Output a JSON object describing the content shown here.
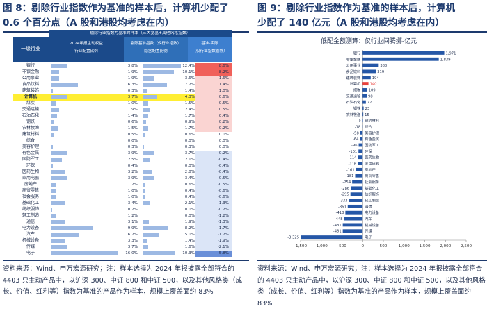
{
  "left": {
    "title_line1": "图 8：剔除行业指数作为基准的样本后，计算机少配了",
    "title_line2": "0.6 个百分点（A 股和港股均考虑在内）",
    "table_caption": "剔除行业指数为基准的样本（三大宽基+其他风格指数）",
    "headers": {
      "industry": "一级行业",
      "portfolio_a": "2024年报主动权益",
      "portfolio_b": "行业配置比例",
      "benchmark_a": "剔除基准指数（仅行业指数）",
      "benchmark_b": "隐含配置比例",
      "benchmark_c": "",
      "diff_a": "基准-实际",
      "diff_b": "（仅行业指数剔除）"
    },
    "highlight_row": "计算机",
    "source": "资料来源：Wind、申万宏源研究；注：样本选择为 2024 年报披露全部符合的 4403 只主动产品中，以沪深 300、中证 800 和中证 500，以及其他风格类（成长、价值、红利等）指数为基准的产品作为样本，规模上覆盖面约 83%",
    "rows": [
      {
        "name": "银行",
        "actual": "3.8%",
        "actual_v": 3.8,
        "bench": "12.4%",
        "bench_v": 12.4,
        "diff": "8.6%",
        "diff_v": 8.6
      },
      {
        "name": "非银金融",
        "actual": "1.9%",
        "actual_v": 1.9,
        "bench": "10.1%",
        "bench_v": 10.1,
        "diff": "8.2%",
        "diff_v": 8.2
      },
      {
        "name": "公用事业",
        "actual": "1.9%",
        "actual_v": 1.9,
        "bench": "3.6%",
        "bench_v": 3.6,
        "diff": "1.6%",
        "diff_v": 1.6
      },
      {
        "name": "食品饮料",
        "actual": "6.3%",
        "actual_v": 6.3,
        "bench": "7.7%",
        "bench_v": 7.7,
        "diff": "1.4%",
        "diff_v": 1.4
      },
      {
        "name": "建筑装饰",
        "actual": "0.3%",
        "actual_v": 0.3,
        "bench": "1.4%",
        "bench_v": 1.4,
        "diff": "1.0%",
        "diff_v": 1.0
      },
      {
        "name": "计算机",
        "actual": "3.7%",
        "actual_v": 3.7,
        "bench": "4.3%",
        "bench_v": 4.3,
        "diff": "0.6%",
        "diff_v": 0.6
      },
      {
        "name": "煤炭",
        "actual": "1.0%",
        "actual_v": 1.0,
        "bench": "1.5%",
        "bench_v": 1.5,
        "diff": "0.5%",
        "diff_v": 0.5
      },
      {
        "name": "交通运输",
        "actual": "1.9%",
        "actual_v": 1.9,
        "bench": "2.4%",
        "bench_v": 2.4,
        "diff": "0.5%",
        "diff_v": 0.5
      },
      {
        "name": "石油石化",
        "actual": "1.4%",
        "actual_v": 1.4,
        "bench": "1.7%",
        "bench_v": 1.7,
        "diff": "0.4%",
        "diff_v": 0.4
      },
      {
        "name": "钢铁",
        "actual": "0.6%",
        "actual_v": 0.6,
        "bench": "0.9%",
        "bench_v": 0.9,
        "diff": "0.2%",
        "diff_v": 0.2
      },
      {
        "name": "农林牧渔",
        "actual": "1.5%",
        "actual_v": 1.5,
        "bench": "1.7%",
        "bench_v": 1.7,
        "diff": "0.2%",
        "diff_v": 0.2
      },
      {
        "name": "建筑材料",
        "actual": "0.5%",
        "actual_v": 0.5,
        "bench": "0.6%",
        "bench_v": 0.6,
        "diff": "0.0%",
        "diff_v": 0.0
      },
      {
        "name": "综合",
        "actual": "0.0%",
        "actual_v": 0.0,
        "bench": "0.0%",
        "bench_v": 0.0,
        "diff": "0.0%",
        "diff_v": 0.0
      },
      {
        "name": "美容护理",
        "actual": "0.3%",
        "actual_v": 0.3,
        "bench": "0.3%",
        "bench_v": 0.3,
        "diff": "0.0%",
        "diff_v": 0.0
      },
      {
        "name": "有色金属",
        "actual": "3.9%",
        "actual_v": 3.9,
        "bench": "3.7%",
        "bench_v": 3.7,
        "diff": "-0.2%",
        "diff_v": -0.2
      },
      {
        "name": "国防军工",
        "actual": "2.5%",
        "actual_v": 2.5,
        "bench": "2.1%",
        "bench_v": 2.1,
        "diff": "-0.4%",
        "diff_v": -0.4
      },
      {
        "name": "环保",
        "actual": "0.4%",
        "actual_v": 0.4,
        "bench": "0.0%",
        "bench_v": 0.0,
        "diff": "-0.4%",
        "diff_v": -0.4
      },
      {
        "name": "医药生物",
        "actual": "3.2%",
        "actual_v": 3.2,
        "bench": "2.8%",
        "bench_v": 2.8,
        "diff": "-0.4%",
        "diff_v": -0.4
      },
      {
        "name": "家用电器",
        "actual": "3.9%",
        "actual_v": 3.9,
        "bench": "3.4%",
        "bench_v": 3.4,
        "diff": "-0.5%",
        "diff_v": -0.5
      },
      {
        "name": "房地产",
        "actual": "1.2%",
        "actual_v": 1.2,
        "bench": "0.6%",
        "bench_v": 0.6,
        "diff": "-0.5%",
        "diff_v": -0.5
      },
      {
        "name": "商贸零售",
        "actual": "1.0%",
        "actual_v": 1.0,
        "bench": "0.4%",
        "bench_v": 0.4,
        "diff": "-0.6%",
        "diff_v": -0.6
      },
      {
        "name": "社会服务",
        "actual": "1.0%",
        "actual_v": 1.0,
        "bench": "0.4%",
        "bench_v": 0.4,
        "diff": "-0.6%",
        "diff_v": -0.6
      },
      {
        "name": "基础化工",
        "actual": "3.4%",
        "actual_v": 3.4,
        "bench": "2.1%",
        "bench_v": 2.1,
        "diff": "-1.3%",
        "diff_v": -1.3
      },
      {
        "name": "纺织服饰",
        "actual": "0.2%",
        "actual_v": 0.2,
        "bench": "0.0%",
        "bench_v": 0.0,
        "diff": "-0.2%",
        "diff_v": -0.2
      },
      {
        "name": "轻工制造",
        "actual": "1.2%",
        "actual_v": 1.2,
        "bench": "0.0%",
        "bench_v": 0.0,
        "diff": "-1.2%",
        "diff_v": -1.2
      },
      {
        "name": "通信",
        "actual": "3.1%",
        "actual_v": 3.1,
        "bench": "1.9%",
        "bench_v": 1.9,
        "diff": "-1.3%",
        "diff_v": -1.3
      },
      {
        "name": "电力设备",
        "actual": "9.9%",
        "actual_v": 9.9,
        "bench": "8.2%",
        "bench_v": 8.2,
        "diff": "-1.7%",
        "diff_v": -1.7
      },
      {
        "name": "汽车",
        "actual": "6.7%",
        "actual_v": 6.7,
        "bench": "5.0%",
        "bench_v": 5.0,
        "diff": "-1.7%",
        "diff_v": -1.7
      },
      {
        "name": "机械设备",
        "actual": "3.3%",
        "actual_v": 3.3,
        "bench": "1.4%",
        "bench_v": 1.4,
        "diff": "-1.9%",
        "diff_v": -1.9
      },
      {
        "name": "传媒",
        "actual": "3.7%",
        "actual_v": 3.7,
        "bench": "1.6%",
        "bench_v": 1.6,
        "diff": "-2.1%",
        "diff_v": -2.1
      },
      {
        "name": "电子",
        "actual": "16.0%",
        "actual_v": 16.0,
        "bench": "10.3%",
        "bench_v": 10.3,
        "diff": "-5.8%",
        "diff_v": -5.8
      }
    ]
  },
  "right": {
    "title_line1": "图 9：剔除行业指数作为基准的样本后，计算机",
    "title_line2": "少配了 140 亿元（A 股和港股均考虑在内）",
    "source": "资料来源：Wind、申万宏源研究；注：样本选择为 2024 年报披露全部符合的 4403 只主动产品中，以沪深 300、中证 800 和中证 500，以及其他风格类（成长、价值、红利等）指数为基准的产品作为样本，规模上覆盖面约 83%"
  },
  "colors": {
    "navy": "#1d3a6e",
    "bar_blue": "#2557a7",
    "highlight_red": "#e8413c",
    "yellow": "#ffee33"
  },
  "chart_data": {
    "type": "bar",
    "orientation": "horizontal",
    "title": "低配金额测算：仅行业间腾挪-亿元",
    "categories": [
      "银行",
      "非银金融",
      "公用事业",
      "食品饮料",
      "建筑装饰",
      "计算机",
      "煤炭",
      "交通运输",
      "石油石化",
      "钢铁",
      "农林牧渔",
      "建筑材料",
      "综合",
      "美容护理",
      "有色金属",
      "国防军工",
      "环保",
      "医药生物",
      "家用电器",
      "房地产",
      "商贸零售",
      "社会服务",
      "基础化工",
      "纺织服饰",
      "轻工制造",
      "通信",
      "电力设备",
      "汽车",
      "机械设备",
      "传媒",
      "电子"
    ],
    "values": [
      1971,
      1839,
      388,
      319,
      194,
      140,
      109,
      98,
      77,
      23,
      15,
      -5,
      -18,
      -58,
      -64,
      -96,
      -101,
      -114,
      -116,
      -161,
      -181,
      -254,
      -286,
      -295,
      -333,
      -361,
      -418,
      -448,
      -481,
      -481,
      -3325
    ],
    "value_labels": [
      "1,971",
      "1,839",
      "388",
      "319",
      "194",
      "140",
      "109",
      "98",
      "77",
      "23",
      "15",
      "-5",
      "-18",
      "-58",
      "-64",
      "-96",
      "-101",
      "-114",
      "-116",
      "-161",
      "-181",
      "-254",
      "-286",
      "-295",
      "-333",
      "-361",
      "-418",
      "-448",
      "-481",
      "-481",
      "-3,325"
    ],
    "highlight": "计算机",
    "xlim": [
      -1500,
      2500
    ],
    "xticks": [
      -1500,
      -1000,
      -500,
      0,
      500,
      1000,
      1500,
      2000,
      2500
    ],
    "xtick_labels": [
      "-1,500",
      "-1,000",
      "-500",
      "0",
      "500",
      "1,000",
      "1,500",
      "2,000",
      "2,500"
    ],
    "grid": false
  }
}
